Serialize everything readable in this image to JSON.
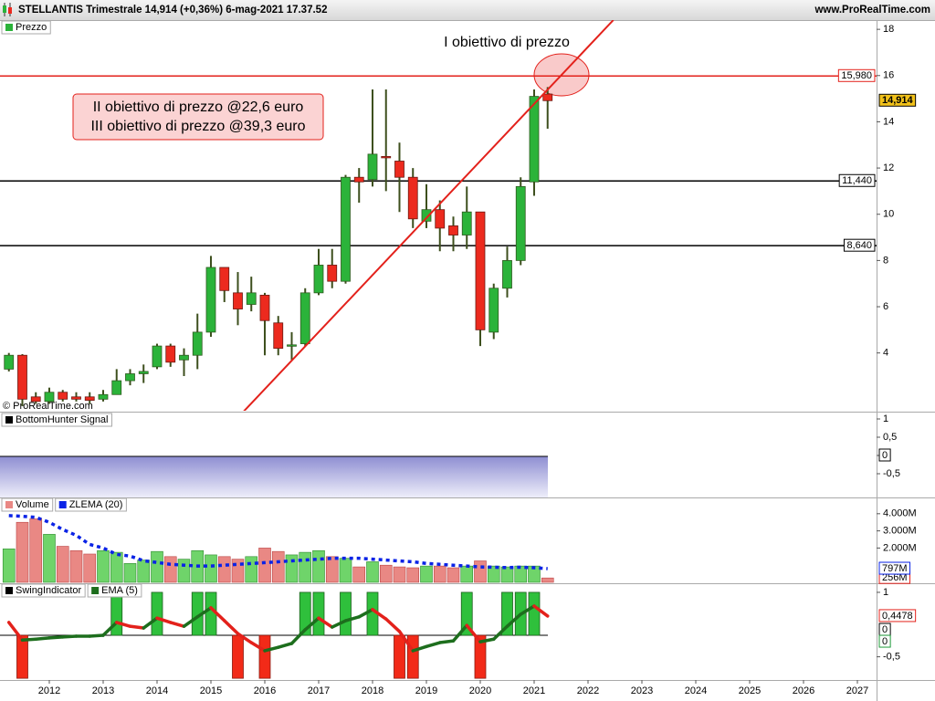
{
  "header": {
    "title": "STELLANTIS Trimestrale 14,914 (+0,36%) 6-mag-2021 17.37.52",
    "site": "www.ProRealTime.com"
  },
  "chart_data": [
    {
      "type": "candlestick",
      "legend": "Prezzo",
      "copyright": "© ProRealTime.com",
      "x": [
        2011.25,
        2011.5,
        2011.75,
        2012,
        2012.25,
        2012.5,
        2012.75,
        2013,
        2013.25,
        2013.5,
        2013.75,
        2014,
        2014.25,
        2014.5,
        2014.75,
        2015,
        2015.25,
        2015.5,
        2015.75,
        2016,
        2016.25,
        2016.5,
        2016.75,
        2017,
        2017.25,
        2017.5,
        2017.75,
        2018,
        2018.25,
        2018.5,
        2018.75,
        2019,
        2019.25,
        2019.5,
        2019.75,
        2020,
        2020.25,
        2020.5,
        2020.75,
        2021,
        2021.25
      ],
      "open": [
        3.3,
        3.9,
        2.1,
        1.9,
        2.3,
        2.1,
        2.1,
        2.0,
        2.2,
        2.8,
        3.1,
        3.4,
        4.3,
        3.7,
        3.9,
        4.9,
        7.7,
        6.6,
        6.1,
        6.5,
        5.3,
        4.3,
        4.4,
        6.6,
        7.8,
        7.1,
        11.6,
        11.5,
        12.5,
        12.3,
        11.6,
        9.7,
        10.2,
        9.5,
        9.1,
        10.1,
        4.9,
        6.8,
        8.0,
        11.4,
        15.2
      ],
      "high": [
        4.0,
        3.95,
        2.3,
        2.5,
        2.4,
        2.3,
        2.3,
        2.4,
        3.3,
        3.3,
        3.5,
        4.4,
        4.4,
        4.2,
        5.7,
        8.2,
        7.7,
        7.5,
        7.3,
        6.6,
        5.6,
        4.9,
        6.8,
        8.5,
        8.5,
        11.7,
        12.0,
        15.4,
        15.4,
        13.1,
        12.0,
        11.3,
        10.6,
        9.9,
        11.2,
        10.1,
        7.0,
        8.6,
        11.6,
        15.4,
        15.5
      ],
      "low": [
        3.2,
        1.7,
        1.8,
        1.8,
        1.9,
        1.9,
        1.8,
        1.9,
        2.2,
        2.6,
        2.7,
        3.3,
        3.4,
        3.0,
        3.3,
        4.7,
        6.2,
        5.2,
        5.8,
        3.9,
        3.9,
        3.7,
        4.3,
        6.5,
        6.8,
        7.0,
        10.5,
        11.2,
        11.0,
        10.1,
        9.4,
        9.4,
        8.4,
        8.4,
        8.5,
        4.3,
        4.6,
        6.4,
        7.8,
        10.8,
        13.7
      ],
      "close": [
        3.9,
        2.0,
        1.9,
        2.3,
        2.0,
        2.0,
        1.95,
        2.2,
        2.8,
        3.1,
        3.2,
        4.3,
        3.6,
        3.9,
        4.9,
        7.7,
        6.7,
        5.9,
        6.6,
        5.4,
        4.2,
        4.35,
        6.6,
        7.8,
        7.1,
        11.6,
        11.4,
        12.6,
        12.45,
        11.6,
        9.8,
        10.2,
        9.4,
        9.1,
        10.1,
        5.0,
        6.8,
        8.0,
        11.2,
        15.1,
        14.914
      ],
      "up_color": "#2bb33a",
      "down_color": "#ec2a1e",
      "xlim": [
        2011.085,
        2027.356
      ],
      "xticks": [
        2012,
        2013,
        2014,
        2015,
        2016,
        2017,
        2018,
        2019,
        2020,
        2021,
        2022,
        2023,
        2024,
        2025,
        2026,
        2027
      ],
      "ylim": [
        1.5,
        18.4
      ],
      "yticks": [
        4,
        6,
        8,
        10,
        12,
        14,
        16,
        18
      ],
      "hlines": [
        {
          "value": 15.98,
          "label": "15,980",
          "color": "#e3211b"
        },
        {
          "value": 11.44,
          "label": "11,440",
          "color": "#000000"
        },
        {
          "value": 8.64,
          "label": "8,640",
          "color": "#000000"
        }
      ],
      "last_label": {
        "value": 14.914,
        "label": "14,914",
        "color": "#f2c21a"
      },
      "trendline": {
        "x": [
          2015.58,
          2022.47
        ],
        "y": [
          1.4,
          18.4
        ],
        "color": "#e3211b"
      },
      "annotations": [
        "I obiettivo di prezzo",
        "II obiettivo di prezzo @22,6 euro",
        "III obiettivo di prezzo @39,3 euro"
      ]
    },
    {
      "type": "area",
      "legend": "BottomHunter Signal",
      "ylim": [
        -1.15,
        1.175
      ],
      "yticks": [
        1,
        {
          "value": 0.5,
          "label": "0,5"
        },
        0,
        {
          "value": -0.5,
          "label": "-0,5"
        }
      ],
      "last_labels": [
        {
          "value": 0,
          "label": "0"
        }
      ]
    },
    {
      "type": "bar",
      "ylim": [
        0,
        4895
      ],
      "yticks": [
        {
          "value": 4000,
          "label": "4.000M"
        },
        {
          "value": 3000,
          "label": "3.000M"
        },
        {
          "value": 2000,
          "label": "2.000M"
        }
      ],
      "series": [
        {
          "name": "Volume",
          "values": [
            1950,
            3500,
            3700,
            2800,
            2100,
            1850,
            1650,
            1850,
            1750,
            1100,
            1300,
            1800,
            1500,
            1350,
            1850,
            1600,
            1500,
            1350,
            1500,
            2000,
            1800,
            1600,
            1750,
            1850,
            1500,
            1400,
            900,
            1200,
            1000,
            900,
            850,
            950,
            950,
            850,
            950,
            1250,
            950,
            900,
            950,
            950,
            256
          ],
          "value_labels": [
            null,
            null,
            null,
            null,
            null,
            null,
            null,
            null,
            null,
            null,
            null,
            null,
            null,
            null,
            null,
            null,
            null,
            null,
            null,
            null,
            null,
            null,
            null,
            null,
            null,
            null,
            null,
            null,
            null,
            null,
            null,
            null,
            null,
            null,
            null,
            null,
            null,
            null,
            null,
            null,
            "256M"
          ]
        },
        {
          "name": "ZLEMA (20)",
          "color": "#0a23e6",
          "values": [
            3890,
            3850,
            3790,
            3500,
            3080,
            2740,
            2210,
            2000,
            1630,
            1530,
            1260,
            1160,
            1050,
            1000,
            950,
            950,
            1000,
            1050,
            1100,
            1150,
            1200,
            1250,
            1300,
            1350,
            1400,
            1400,
            1400,
            1350,
            1300,
            1250,
            1200,
            1100,
            1050,
            1000,
            950,
            900,
            880,
            860,
            880,
            850,
            797
          ],
          "value_labels": [
            null,
            null,
            null,
            null,
            null,
            null,
            null,
            null,
            null,
            null,
            null,
            null,
            null,
            null,
            null,
            null,
            null,
            null,
            null,
            null,
            null,
            null,
            null,
            null,
            null,
            null,
            null,
            null,
            null,
            null,
            null,
            null,
            null,
            null,
            null,
            null,
            null,
            null,
            null,
            null,
            "797M"
          ]
        }
      ]
    },
    {
      "type": "bar",
      "ylim": [
        -1.04,
        1.19
      ],
      "yticks": [
        1,
        {
          "value": -0.5,
          "label": "-0,5"
        }
      ],
      "series": [
        {
          "name": "SwingIndicator",
          "values": [
            null,
            -1,
            null,
            null,
            null,
            null,
            null,
            null,
            1,
            null,
            null,
            1,
            null,
            null,
            1,
            1,
            null,
            -1,
            null,
            -1,
            null,
            null,
            1,
            1,
            null,
            1,
            null,
            1,
            null,
            -1,
            -1,
            null,
            null,
            null,
            1,
            -1,
            null,
            1,
            1,
            1,
            null
          ]
        },
        {
          "name": "EMA (5)",
          "up_color": "#1d6e1d",
          "down_color": "#e3211b",
          "values": [
            0.3,
            -0.11,
            -0.09,
            -0.06,
            -0.04,
            -0.02,
            -0.02,
            0,
            0.3,
            0.21,
            0.17,
            0.4,
            0.3,
            0.21,
            0.43,
            0.64,
            0.34,
            0.04,
            -0.17,
            -0.36,
            -0.28,
            -0.19,
            0.13,
            0.4,
            0.19,
            0.34,
            0.43,
            0.6,
            0.38,
            0.09,
            -0.36,
            -0.26,
            -0.17,
            -0.13,
            0.23,
            -0.15,
            -0.09,
            0.21,
            0.49,
            0.68,
            0.4478
          ],
          "value_labels": [
            null,
            null,
            null,
            null,
            null,
            null,
            null,
            null,
            null,
            null,
            null,
            null,
            null,
            null,
            null,
            null,
            null,
            null,
            null,
            null,
            null,
            null,
            null,
            null,
            null,
            null,
            null,
            null,
            null,
            null,
            null,
            null,
            null,
            null,
            null,
            null,
            null,
            null,
            null,
            null,
            "0,4478"
          ]
        }
      ],
      "last_labels": [
        {
          "value": 0,
          "label": "0"
        },
        {
          "value": 0,
          "label": "0",
          "color": "#1f9a3a"
        }
      ]
    }
  ]
}
